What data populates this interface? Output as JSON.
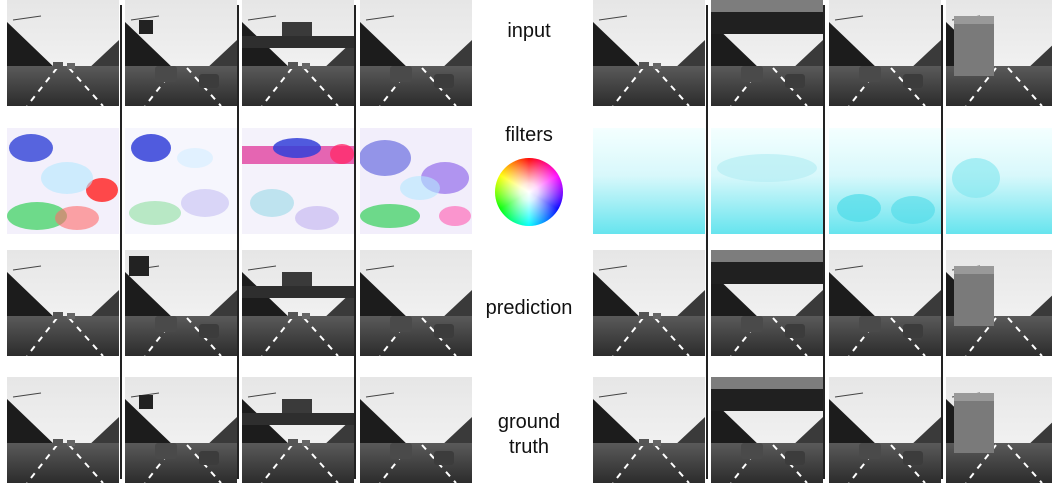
{
  "row_labels": {
    "input": "input",
    "filters": "filters",
    "prediction": "prediction",
    "ground_truth_line1": "ground",
    "ground_truth_line2": "truth"
  },
  "icons": {
    "color_wheel": "hue-color-wheel-icon"
  },
  "colors": {
    "separator": "#222222",
    "filter_cyan": "#5fe6f0",
    "filter_magenta": "#e0359a",
    "filter_blue": "#3b4bd8"
  }
}
